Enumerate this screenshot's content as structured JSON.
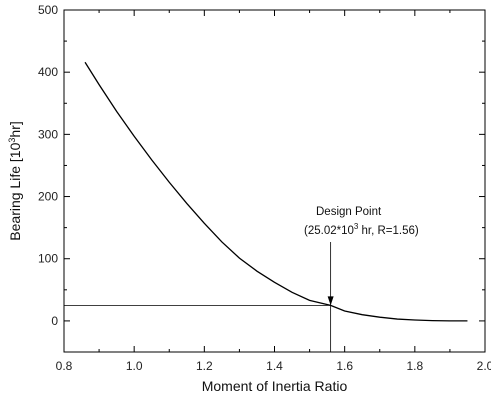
{
  "chart_data": {
    "type": "line",
    "xlabel": "Moment of Inertia Ratio",
    "ylabel_main": "Bearing Life [10",
    "ylabel_sup": "3",
    "ylabel_end": "hr]",
    "xlim": [
      0.8,
      2.0
    ],
    "ylim": [
      -50,
      500
    ],
    "xticks": [
      0.8,
      1.0,
      1.2,
      1.4,
      1.6,
      1.8,
      2.0
    ],
    "xtick_labels": [
      "0.8",
      "1.0",
      "1.2",
      "1.4",
      "1.6",
      "1.8",
      "2.0"
    ],
    "yticks": [
      0,
      100,
      200,
      300,
      400,
      500
    ],
    "ytick_labels": [
      "0",
      "100",
      "200",
      "300",
      "400",
      "500"
    ],
    "grid": false,
    "series": [
      {
        "x": [
          0.86,
          0.9,
          0.95,
          1.0,
          1.05,
          1.1,
          1.15,
          1.2,
          1.25,
          1.3,
          1.35,
          1.4,
          1.45,
          1.5,
          1.56,
          1.6,
          1.65,
          1.7,
          1.75,
          1.8,
          1.85,
          1.9,
          1.95
        ],
        "y": [
          416,
          380,
          337,
          297,
          259,
          223,
          189,
          157,
          127,
          101,
          80,
          62,
          46,
          33,
          25.02,
          16,
          10,
          6,
          3,
          1.5,
          0.5,
          0.1,
          0
        ],
        "color": "#000000"
      }
    ],
    "design_point": {
      "x": 1.56,
      "y": 25.02,
      "line1": "Design Point",
      "line2_pre": "(25.02*10",
      "line2_sup": "3",
      "line2_post": " hr, R=1.56)"
    }
  }
}
